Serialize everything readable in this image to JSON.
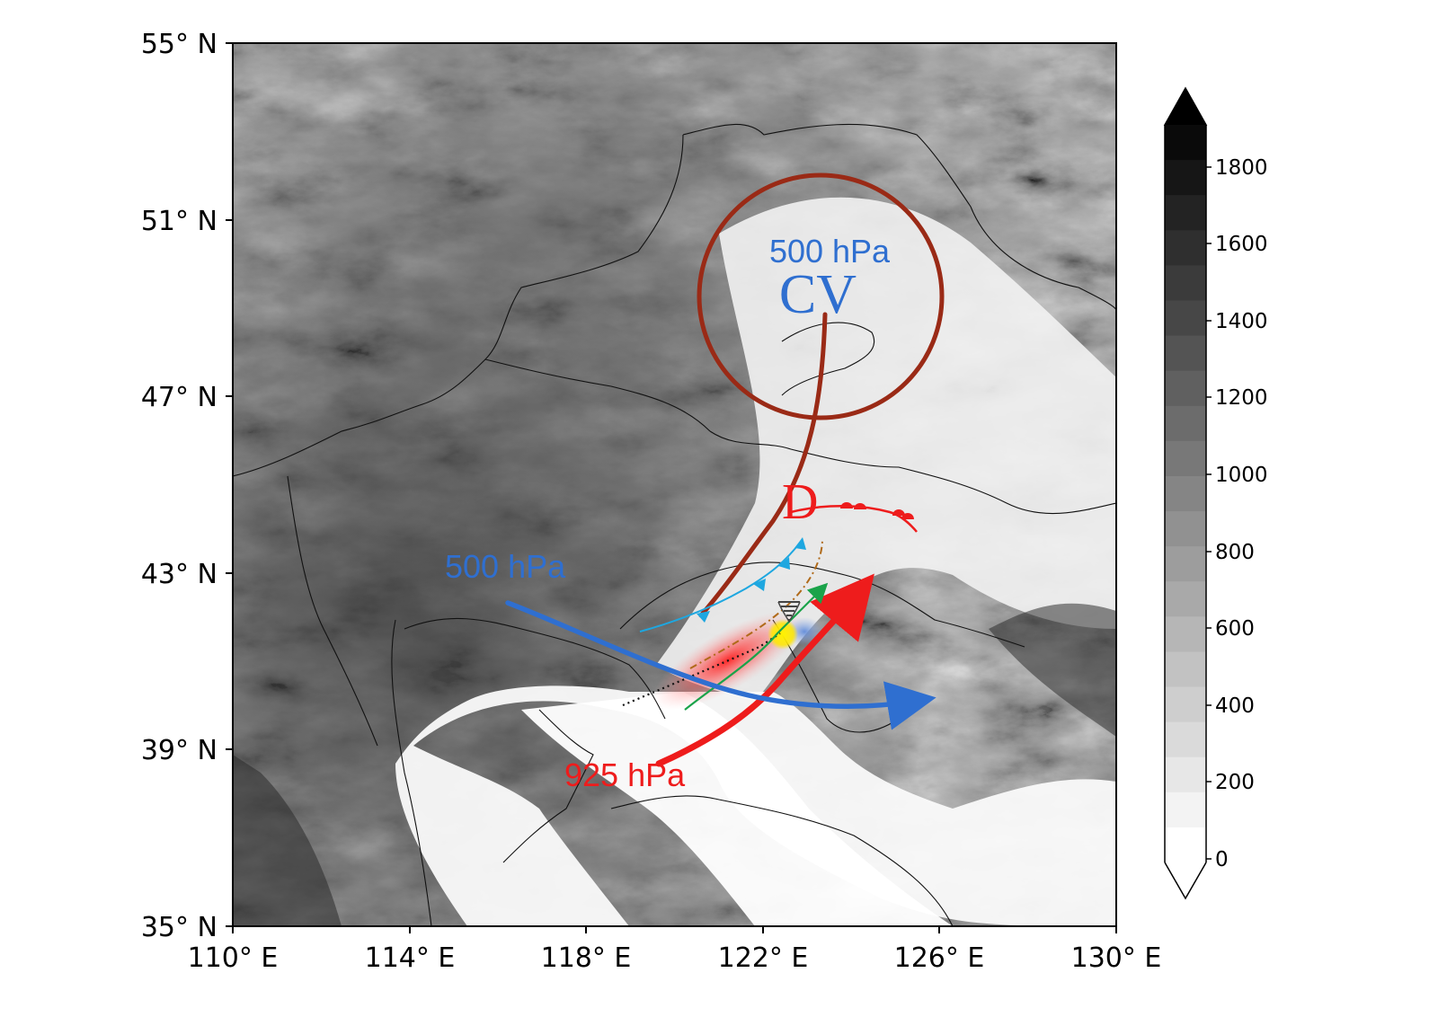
{
  "map": {
    "lat_ticks": [
      "55° N",
      "51° N",
      "47° N",
      "43° N",
      "39° N",
      "35° N"
    ],
    "lon_ticks": [
      "110° E",
      "114° E",
      "118° E",
      "122° E",
      "126° E",
      "130° E"
    ]
  },
  "colorbar": {
    "labels": [
      "1800",
      "1600",
      "1400",
      "1200",
      "1000",
      "800",
      "600",
      "400",
      "200",
      "0"
    ],
    "extend": "both"
  },
  "annotations": {
    "upper_level_label": "500 hPa",
    "cold_vortex_label": "CV",
    "low_label": "D",
    "trough_label": "500 hPa",
    "low_level_jet_label": "925 hPa"
  },
  "colors": {
    "vortex": "#9a2a16",
    "jet_500": "#2f6fd0",
    "jet_925": "#ee1c1c",
    "cold_front": "#1ea7e0",
    "warm_front": "#ee1c1c",
    "precip": "#ff3030",
    "convergence": "#1aa34a",
    "dryline": "#b06a1a",
    "tornado_spot": "#ffee00",
    "cold_pool": "#4d7fd6"
  },
  "icons": {
    "tornado": "tornado-icon"
  }
}
